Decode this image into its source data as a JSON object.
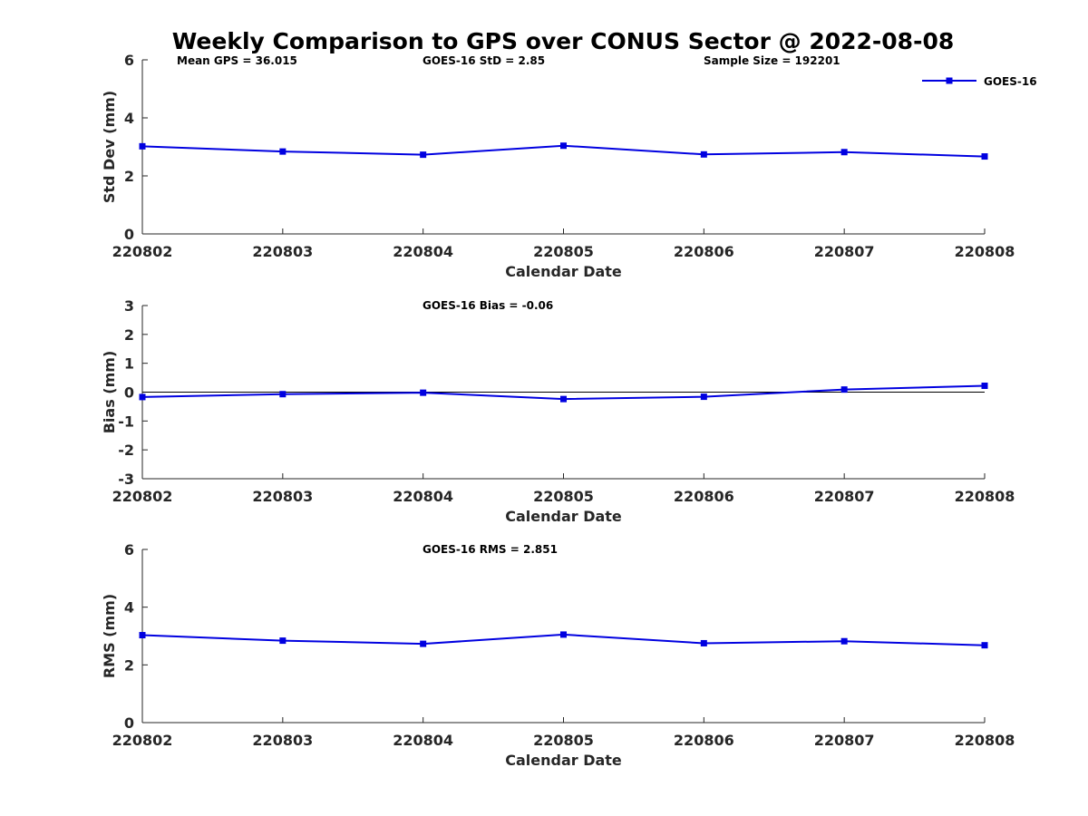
{
  "figure": {
    "title": "Weekly Comparison to GPS over CONUS Sector @ 2022-08-08",
    "series_color": "#0000e0",
    "legend": {
      "label": "GOES-16",
      "location": "top-right"
    }
  },
  "chart_data": [
    {
      "type": "line",
      "title": "",
      "xlabel": "Calendar Date",
      "ylabel": "Std Dev (mm)",
      "categories": [
        "220802",
        "220803",
        "220804",
        "220805",
        "220806",
        "220807",
        "220808"
      ],
      "series": [
        {
          "name": "GOES-16",
          "values": [
            3.02,
            2.84,
            2.73,
            3.04,
            2.74,
            2.82,
            2.67
          ]
        }
      ],
      "ylim": [
        0,
        6
      ],
      "yticks": [
        "0",
        "2",
        "4",
        "6"
      ],
      "zero_line": false,
      "annotations": [
        "Mean GPS = 36.015",
        "GOES-16 StD = 2.85",
        "Sample Size = 192201"
      ]
    },
    {
      "type": "line",
      "title": "",
      "xlabel": "Calendar Date",
      "ylabel": "Bias (mm)",
      "categories": [
        "220802",
        "220803",
        "220804",
        "220805",
        "220806",
        "220807",
        "220808"
      ],
      "series": [
        {
          "name": "GOES-16",
          "values": [
            -0.17,
            -0.07,
            -0.02,
            -0.24,
            -0.16,
            0.09,
            0.22
          ]
        }
      ],
      "ylim": [
        -3,
        3
      ],
      "yticks": [
        "-3",
        "-2",
        "-1",
        "0",
        "1",
        "2",
        "3"
      ],
      "zero_line": true,
      "annotations": [
        "GOES-16 Bias  = -0.06"
      ]
    },
    {
      "type": "line",
      "title": "",
      "xlabel": "Calendar Date",
      "ylabel": "RMS (mm)",
      "categories": [
        "220802",
        "220803",
        "220804",
        "220805",
        "220806",
        "220807",
        "220808"
      ],
      "series": [
        {
          "name": "GOES-16",
          "values": [
            3.03,
            2.84,
            2.73,
            3.05,
            2.75,
            2.82,
            2.68
          ]
        }
      ],
      "ylim": [
        0,
        6
      ],
      "yticks": [
        "0",
        "2",
        "4",
        "6"
      ],
      "zero_line": false,
      "annotations": [
        "GOES-16 RMS = 2.851"
      ]
    }
  ]
}
